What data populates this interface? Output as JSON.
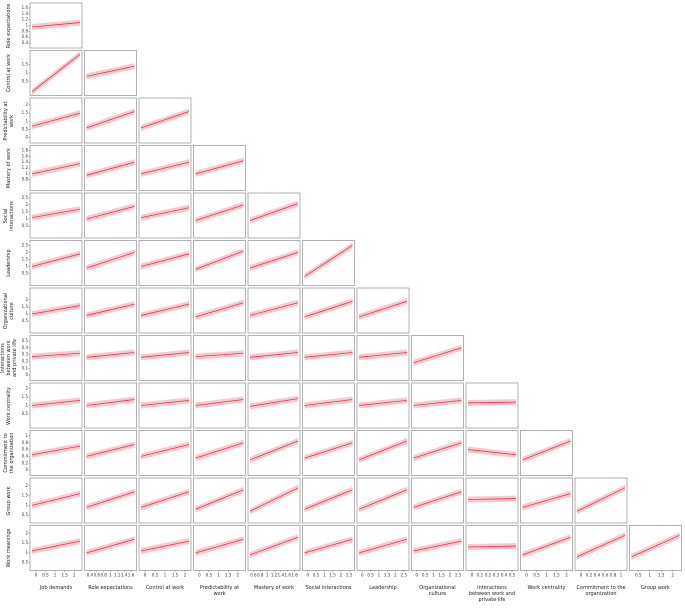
{
  "chart_data": {
    "type": "scatter_matrix",
    "fit_color": "#e8344a",
    "band_color": "#f4a6b0",
    "columns": [
      {
        "name": "Job demands",
        "lim": [
          -0.2,
          2.3
        ],
        "ticks": [
          0,
          0.5,
          1,
          1.5,
          2
        ]
      },
      {
        "name": "Role expectations",
        "lim": [
          0.3,
          1.7
        ],
        "ticks": [
          0.4,
          0.6,
          0.8,
          1,
          1.2,
          1.4,
          1.6
        ]
      },
      {
        "name": "Control at work",
        "lim": [
          -0.2,
          2.2
        ],
        "ticks": [
          0,
          0.5,
          1,
          1.5,
          2
        ]
      },
      {
        "name": "Predictability at work",
        "lim": [
          -0.2,
          2.3
        ],
        "ticks": [
          0,
          0.5,
          1,
          1.5,
          2
        ]
      },
      {
        "name": "Mastery of work",
        "lim": [
          0.5,
          1.9
        ],
        "ticks": [
          0.6,
          0.8,
          1,
          1.2,
          1.4,
          1.6,
          1.8
        ]
      },
      {
        "name": "Social interactions",
        "lim": [
          -0.2,
          2.7
        ],
        "ticks": [
          0,
          0.5,
          1,
          1.5,
          2,
          2.5
        ]
      },
      {
        "name": "Leadership",
        "lim": [
          -0.2,
          2.7
        ],
        "ticks": [
          0,
          0.5,
          1,
          1.5,
          2,
          2.5
        ]
      },
      {
        "name": "Organizational culture",
        "lim": [
          -0.2,
          2.7
        ],
        "ticks": [
          0,
          0.5,
          1,
          1.5,
          2,
          2.5
        ]
      },
      {
        "name": "Interactions between work and private life",
        "lim": [
          -0.05,
          0.55
        ],
        "ticks": [
          0,
          0.1,
          0.2,
          0.3,
          0.4,
          0.5
        ]
      },
      {
        "name": "Work centrality",
        "lim": [
          -0.2,
          2.2
        ],
        "ticks": [
          0,
          0.5,
          1,
          1.5,
          2
        ]
      },
      {
        "name": "Commitment to the organization",
        "lim": [
          -0.1,
          1.1
        ],
        "ticks": [
          0,
          0.2,
          0.4,
          0.6,
          0.8,
          1
        ]
      },
      {
        "name": "Group work",
        "lim": [
          0.2,
          2.3
        ],
        "ticks": [
          0.5,
          1,
          1.5,
          2
        ]
      }
    ],
    "rows": [
      {
        "name": "Role expectations",
        "lim": [
          0.3,
          1.7
        ],
        "ticks": [
          0.4,
          0.6,
          0.8,
          1,
          1.2,
          1.4,
          1.6
        ],
        "fits": [
          [
            0.95,
            1.1
          ]
        ]
      },
      {
        "name": "Control at work",
        "lim": [
          -0.2,
          2.2
        ],
        "ticks": [
          0.5,
          1,
          1.5
        ],
        "fits": [
          [
            -0.1,
            2.1
          ],
          [
            0.8,
            1.4
          ]
        ]
      },
      {
        "name": "Predictability at work",
        "lim": [
          -0.2,
          2.3
        ],
        "ticks": [
          0,
          0.5,
          1,
          1.5,
          2
        ],
        "fits": [
          [
            0.7,
            1.5
          ],
          [
            0.6,
            1.6
          ],
          [
            0.6,
            1.6
          ]
        ]
      },
      {
        "name": "Mastery of work",
        "lim": [
          0.5,
          1.9
        ],
        "ticks": [
          0.8,
          1,
          1.2,
          1.4,
          1.6,
          1.8
        ],
        "fits": [
          [
            1.0,
            1.35
          ],
          [
            0.95,
            1.4
          ],
          [
            1.0,
            1.4
          ],
          [
            1.0,
            1.45
          ]
        ]
      },
      {
        "name": "Social interactions",
        "lim": [
          -0.2,
          2.7
        ],
        "ticks": [
          0.5,
          1,
          1.5,
          2,
          2.5
        ],
        "fits": [
          [
            1.1,
            1.7
          ],
          [
            1.0,
            1.9
          ],
          [
            1.1,
            1.8
          ],
          [
            0.9,
            2.0
          ],
          [
            0.9,
            2.1
          ]
        ]
      },
      {
        "name": "Leadership",
        "lim": [
          -0.2,
          2.7
        ],
        "ticks": [
          0.5,
          1,
          1.5,
          2,
          2.5
        ],
        "fits": [
          [
            1.0,
            1.9
          ],
          [
            0.9,
            2.0
          ],
          [
            1.0,
            1.9
          ],
          [
            0.8,
            2.1
          ],
          [
            0.9,
            2.0
          ],
          [
            0.3,
            2.5
          ]
        ]
      },
      {
        "name": "Organizational culture",
        "lim": [
          -0.2,
          2.7
        ],
        "ticks": [
          0.5,
          1,
          1.5,
          2
        ],
        "fits": [
          [
            1.0,
            1.6
          ],
          [
            0.9,
            1.7
          ],
          [
            0.9,
            1.7
          ],
          [
            0.8,
            1.8
          ],
          [
            0.9,
            1.8
          ],
          [
            0.8,
            1.9
          ],
          [
            0.8,
            1.9
          ]
        ]
      },
      {
        "name": "Interactions between work and private life",
        "lim": [
          -0.05,
          0.55
        ],
        "ticks": [
          0,
          0.1,
          0.2,
          0.3,
          0.4,
          0.5
        ],
        "fits": [
          [
            0.27,
            0.32
          ],
          [
            0.26,
            0.33
          ],
          [
            0.26,
            0.33
          ],
          [
            0.27,
            0.32
          ],
          [
            0.26,
            0.33
          ],
          [
            0.26,
            0.33
          ],
          [
            0.26,
            0.33
          ],
          [
            0.18,
            0.4
          ]
        ]
      },
      {
        "name": "Work centrality",
        "lim": [
          -0.2,
          2.2
        ],
        "ticks": [
          0.5,
          1,
          1.5,
          2
        ],
        "fits": [
          [
            1.0,
            1.3
          ],
          [
            1.0,
            1.35
          ],
          [
            1.0,
            1.3
          ],
          [
            1.0,
            1.35
          ],
          [
            0.95,
            1.4
          ],
          [
            1.0,
            1.35
          ],
          [
            1.0,
            1.3
          ],
          [
            1.0,
            1.3
          ],
          [
            1.15,
            1.2
          ]
        ]
      },
      {
        "name": "Commitment to the organization",
        "lim": [
          -0.1,
          1.1
        ],
        "ticks": [
          0,
          0.2,
          0.4,
          0.6,
          0.8,
          1
        ],
        "fits": [
          [
            0.45,
            0.7
          ],
          [
            0.4,
            0.75
          ],
          [
            0.4,
            0.75
          ],
          [
            0.35,
            0.8
          ],
          [
            0.3,
            0.85
          ],
          [
            0.35,
            0.8
          ],
          [
            0.3,
            0.85
          ],
          [
            0.35,
            0.8
          ],
          [
            0.6,
            0.45
          ],
          [
            0.3,
            0.85
          ]
        ]
      },
      {
        "name": "Group work",
        "lim": [
          0.2,
          2.3
        ],
        "ticks": [
          0.5,
          1,
          1.5,
          2
        ],
        "fits": [
          [
            1.0,
            1.6
          ],
          [
            0.9,
            1.7
          ],
          [
            0.9,
            1.7
          ],
          [
            0.8,
            1.8
          ],
          [
            0.7,
            1.9
          ],
          [
            0.8,
            1.8
          ],
          [
            0.8,
            1.8
          ],
          [
            0.9,
            1.7
          ],
          [
            1.3,
            1.35
          ],
          [
            0.9,
            1.6
          ],
          [
            0.7,
            1.9
          ]
        ]
      },
      {
        "name": "Work meanings",
        "lim": [
          0.2,
          2.3
        ],
        "ticks": [
          0.5,
          1,
          1.5,
          2
        ],
        "fits": [
          [
            1.1,
            1.6
          ],
          [
            1.0,
            1.7
          ],
          [
            1.1,
            1.6
          ],
          [
            1.0,
            1.7
          ],
          [
            0.9,
            1.8
          ],
          [
            1.0,
            1.7
          ],
          [
            1.0,
            1.7
          ],
          [
            1.1,
            1.6
          ],
          [
            1.3,
            1.35
          ],
          [
            0.9,
            1.8
          ],
          [
            0.8,
            1.9
          ],
          [
            0.8,
            1.9
          ]
        ]
      }
    ]
  }
}
